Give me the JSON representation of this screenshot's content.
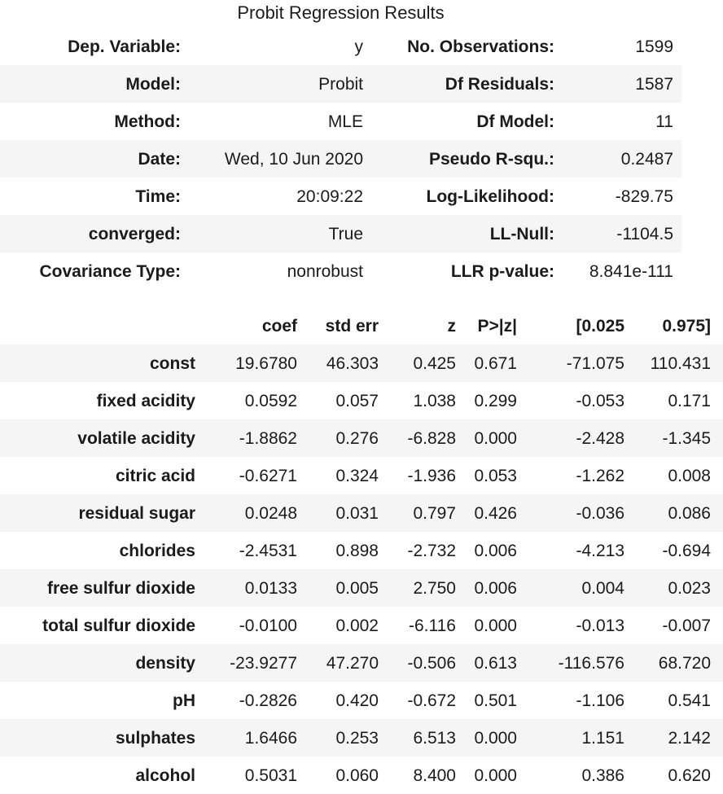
{
  "title": "Probit Regression Results",
  "colors": {
    "stripe": "#f5f5f5",
    "text": "#1b1b1b",
    "background": "#ffffff"
  },
  "summary_table": {
    "rows": [
      {
        "label1": "Dep. Variable:",
        "value1": "y",
        "label2": "No. Observations:",
        "value2": "1599"
      },
      {
        "label1": "Model:",
        "value1": "Probit",
        "label2": "Df Residuals:",
        "value2": "1587"
      },
      {
        "label1": "Method:",
        "value1": "MLE",
        "label2": "Df Model:",
        "value2": "11"
      },
      {
        "label1": "Date:",
        "value1": "Wed, 10 Jun 2020",
        "label2": "Pseudo R-squ.:",
        "value2": "0.2487"
      },
      {
        "label1": "Time:",
        "value1": "20:09:22",
        "label2": "Log-Likelihood:",
        "value2": "-829.75"
      },
      {
        "label1": "converged:",
        "value1": "True",
        "label2": "LL-Null:",
        "value2": "-1104.5"
      },
      {
        "label1": "Covariance Type:",
        "value1": "nonrobust",
        "label2": "LLR p-value:",
        "value2": "8.841e-111"
      }
    ]
  },
  "coef_table": {
    "headers": [
      "",
      "coef",
      "std err",
      "z",
      "P>|z|",
      "[0.025",
      "0.975]"
    ],
    "rows": [
      {
        "label": "const",
        "coef": "19.6780",
        "std_err": "46.303",
        "z": "0.425",
        "p": "0.671",
        "ci_low": "-71.075",
        "ci_high": "110.431"
      },
      {
        "label": "fixed acidity",
        "coef": "0.0592",
        "std_err": "0.057",
        "z": "1.038",
        "p": "0.299",
        "ci_low": "-0.053",
        "ci_high": "0.171"
      },
      {
        "label": "volatile acidity",
        "coef": "-1.8862",
        "std_err": "0.276",
        "z": "-6.828",
        "p": "0.000",
        "ci_low": "-2.428",
        "ci_high": "-1.345"
      },
      {
        "label": "citric acid",
        "coef": "-0.6271",
        "std_err": "0.324",
        "z": "-1.936",
        "p": "0.053",
        "ci_low": "-1.262",
        "ci_high": "0.008"
      },
      {
        "label": "residual sugar",
        "coef": "0.0248",
        "std_err": "0.031",
        "z": "0.797",
        "p": "0.426",
        "ci_low": "-0.036",
        "ci_high": "0.086"
      },
      {
        "label": "chlorides",
        "coef": "-2.4531",
        "std_err": "0.898",
        "z": "-2.732",
        "p": "0.006",
        "ci_low": "-4.213",
        "ci_high": "-0.694"
      },
      {
        "label": "free sulfur dioxide",
        "coef": "0.0133",
        "std_err": "0.005",
        "z": "2.750",
        "p": "0.006",
        "ci_low": "0.004",
        "ci_high": "0.023"
      },
      {
        "label": "total sulfur dioxide",
        "coef": "-0.0100",
        "std_err": "0.002",
        "z": "-6.116",
        "p": "0.000",
        "ci_low": "-0.013",
        "ci_high": "-0.007"
      },
      {
        "label": "density",
        "coef": "-23.9277",
        "std_err": "47.270",
        "z": "-0.506",
        "p": "0.613",
        "ci_low": "-116.576",
        "ci_high": "68.720"
      },
      {
        "label": "pH",
        "coef": "-0.2826",
        "std_err": "0.420",
        "z": "-0.672",
        "p": "0.501",
        "ci_low": "-1.106",
        "ci_high": "0.541"
      },
      {
        "label": "sulphates",
        "coef": "1.6466",
        "std_err": "0.253",
        "z": "6.513",
        "p": "0.000",
        "ci_low": "1.151",
        "ci_high": "2.142"
      },
      {
        "label": "alcohol",
        "coef": "0.5031",
        "std_err": "0.060",
        "z": "8.400",
        "p": "0.000",
        "ci_low": "0.386",
        "ci_high": "0.620"
      }
    ]
  }
}
